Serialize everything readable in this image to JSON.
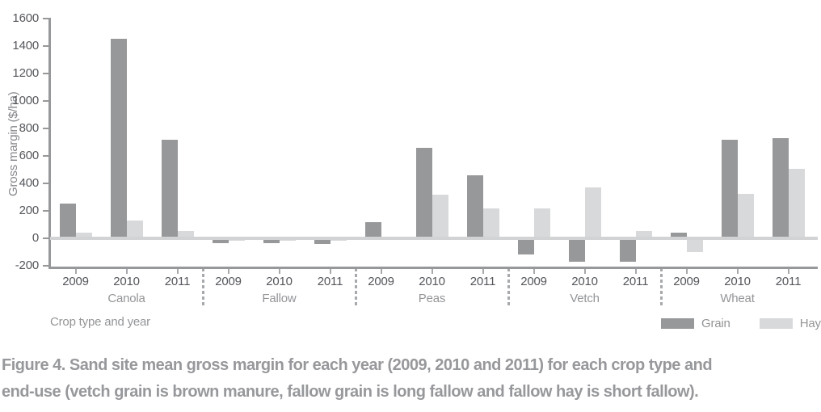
{
  "figure_caption": {
    "line1": "Figure 4. Sand site mean gross margin for each year (2009, 2010 and 2011) for each crop type and",
    "line2": "end-use (vetch grain is brown manure, fallow grain is long fallow and fallow hay is short fallow)."
  },
  "chart_data": {
    "type": "bar",
    "title": "",
    "ylabel": "Gross margin ($/ha)",
    "xlabel": "Crop type and year",
    "ylim": [
      -200,
      1600
    ],
    "ytick_step": 200,
    "yticks": [
      1600,
      1400,
      1200,
      1000,
      800,
      600,
      400,
      200,
      0,
      -200
    ],
    "grid": false,
    "legend_position": "bottom-right",
    "legend": [
      {
        "label": "Grain",
        "color": "#97989a"
      },
      {
        "label": "Hay",
        "color": "#d8d9da"
      }
    ],
    "colors": {
      "axis": "#97989a",
      "tick": "#a7a9ac",
      "zero_line": "#d2d3d5",
      "tick_text": "#55575c",
      "muted_text": "#939598"
    },
    "groups": [
      {
        "crop": "Canola",
        "values": [
          {
            "year": "2009",
            "grain": 250,
            "hay": 40
          },
          {
            "year": "2010",
            "grain": 1450,
            "hay": 130
          },
          {
            "year": "2011",
            "grain": 720,
            "hay": 55
          }
        ]
      },
      {
        "crop": "Fallow",
        "values": [
          {
            "year": "2009",
            "grain": -35,
            "hay": -15
          },
          {
            "year": "2010",
            "grain": -35,
            "hay": -15
          },
          {
            "year": "2011",
            "grain": -40,
            "hay": -20
          }
        ]
      },
      {
        "crop": "Peas",
        "values": [
          {
            "year": "2009",
            "grain": 120,
            "hay": 10
          },
          {
            "year": "2010",
            "grain": 660,
            "hay": 315
          },
          {
            "year": "2011",
            "grain": 460,
            "hay": 215
          }
        ]
      },
      {
        "crop": "Vetch",
        "values": [
          {
            "year": "2009",
            "grain": -120,
            "hay": 220
          },
          {
            "year": "2010",
            "grain": -170,
            "hay": 370
          },
          {
            "year": "2011",
            "grain": -170,
            "hay": 50
          }
        ]
      },
      {
        "crop": "Wheat",
        "values": [
          {
            "year": "2009",
            "grain": 40,
            "hay": -100
          },
          {
            "year": "2010",
            "grain": 715,
            "hay": 325
          },
          {
            "year": "2011",
            "grain": 730,
            "hay": 505
          }
        ]
      }
    ]
  }
}
